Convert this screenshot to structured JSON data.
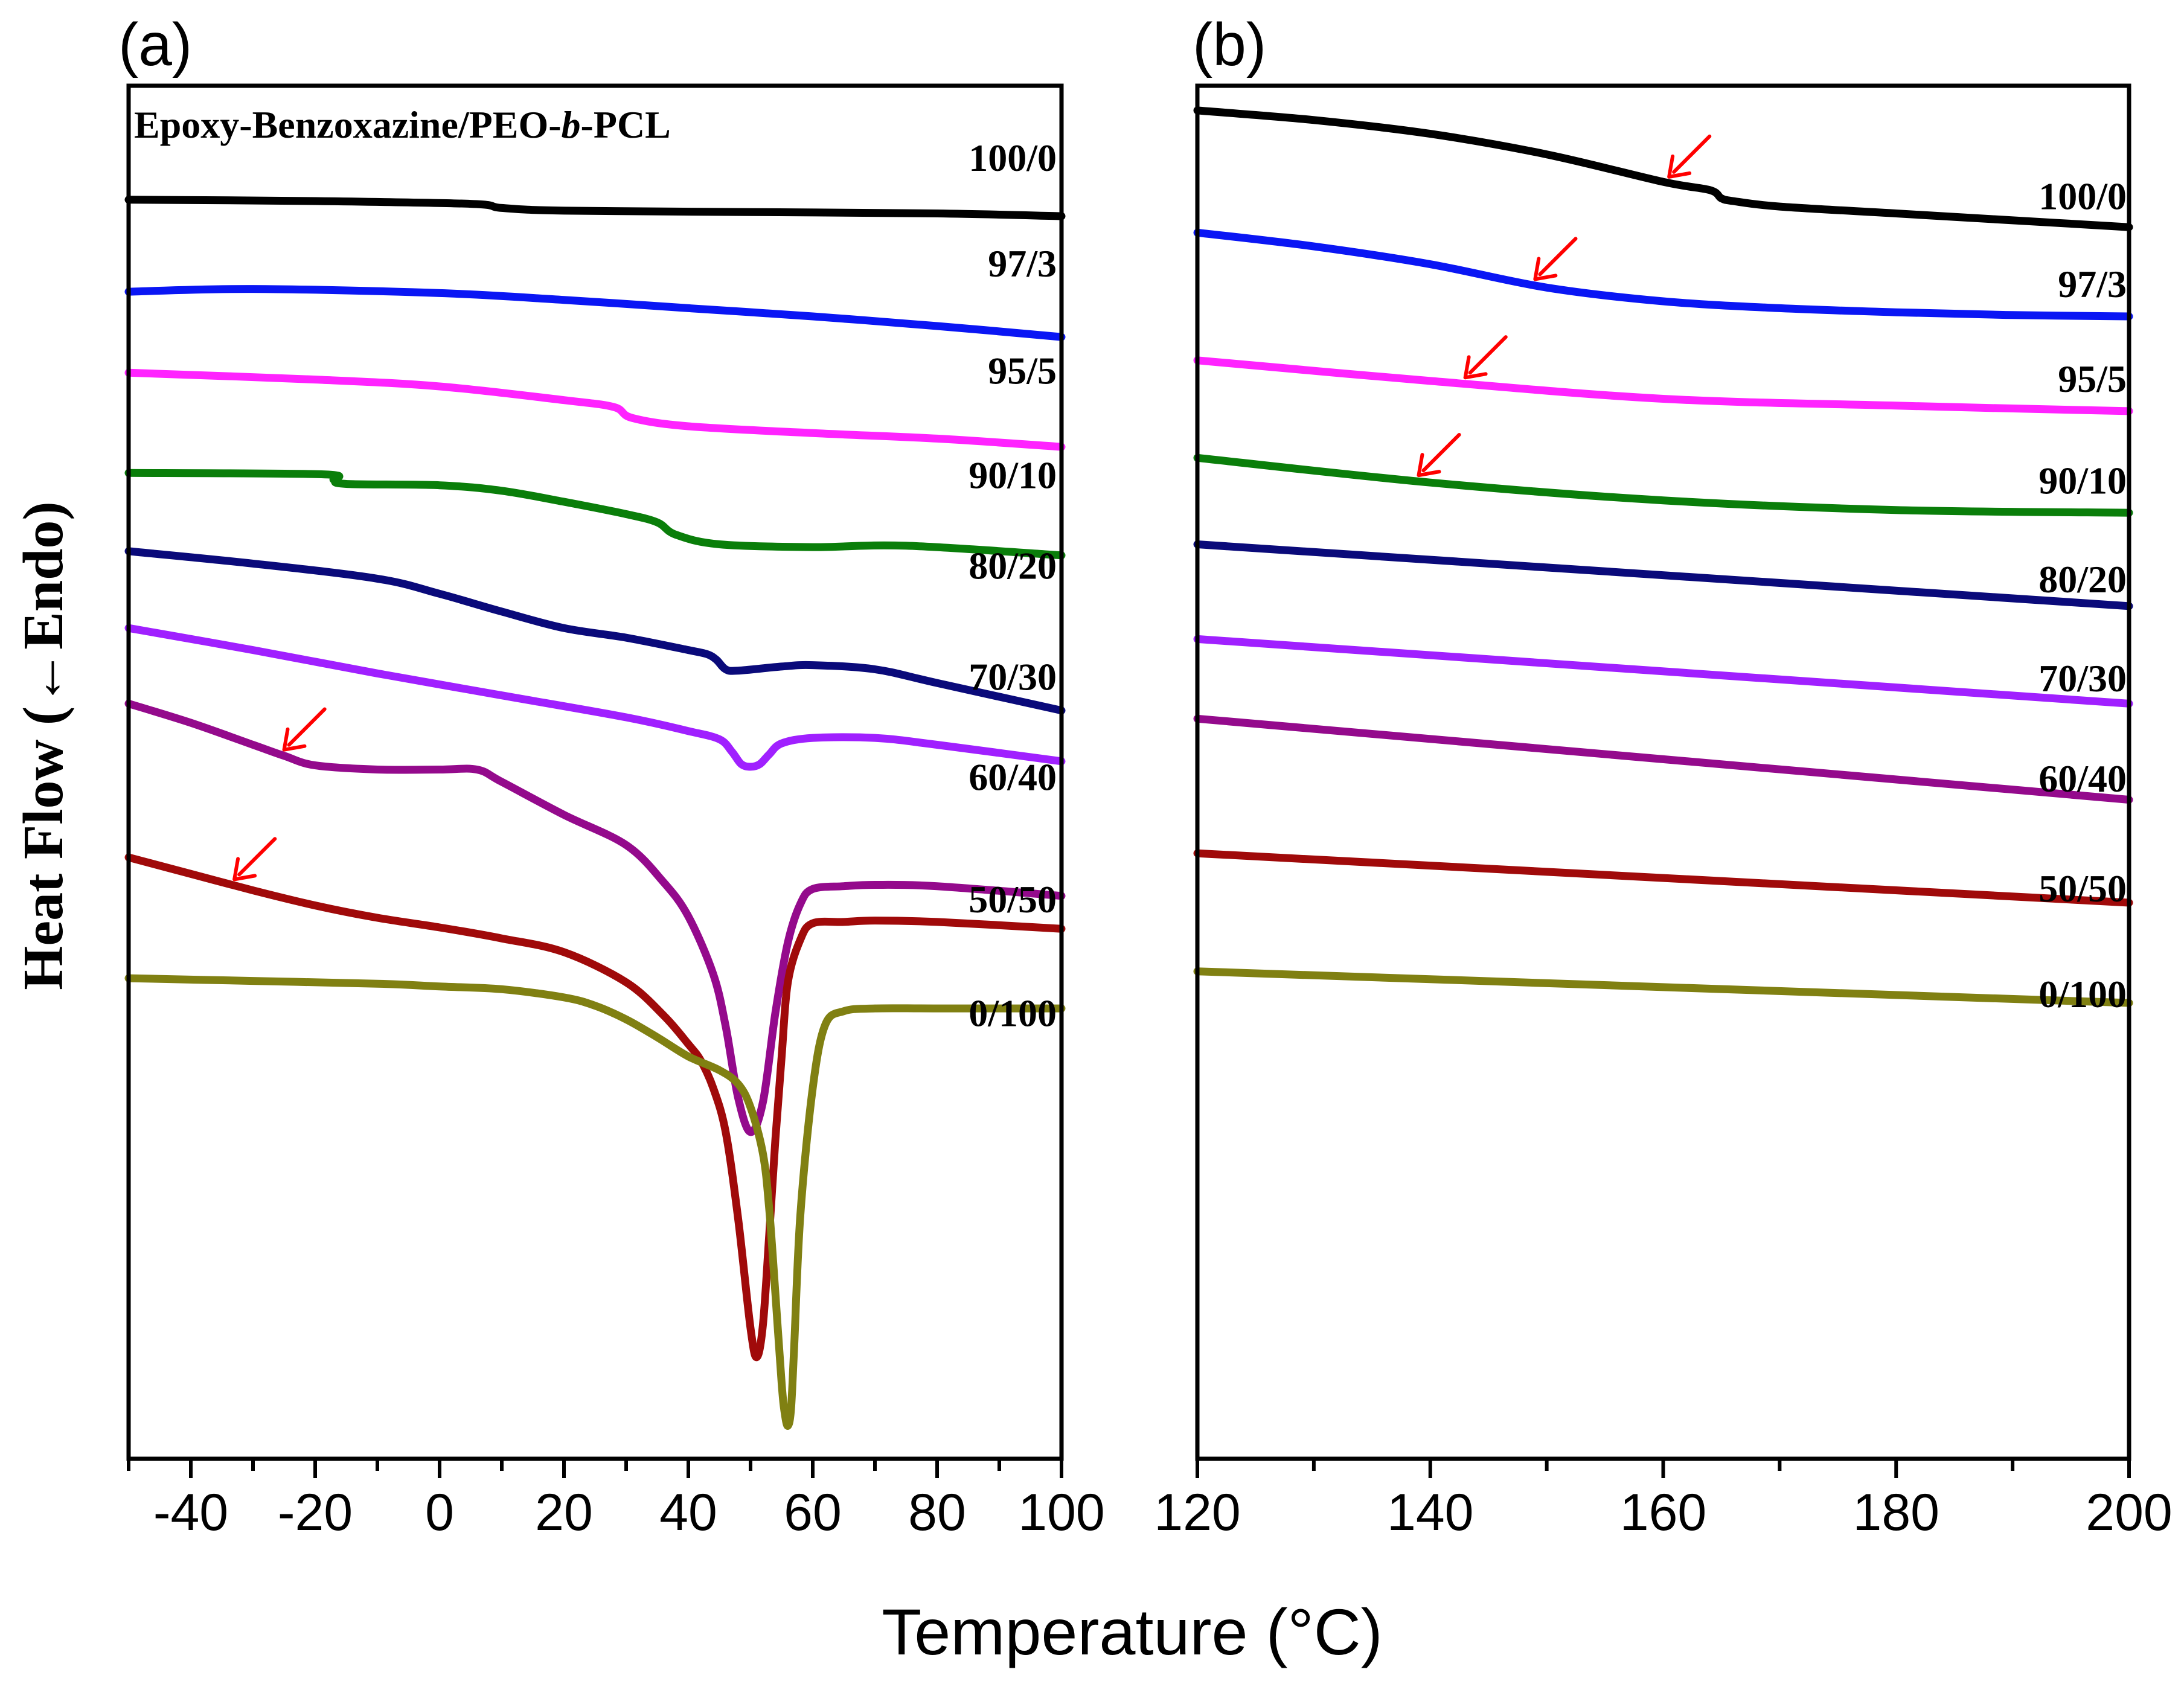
{
  "figure": {
    "ylabel": "Heat Flow (←Endo)",
    "xlabel": "Temperature (°C)",
    "colors": {
      "100/0": "#000000",
      "97/3": "#0a16f4",
      "95/5": "#ff23ff",
      "90/10": "#0a7e0a",
      "80/20": "#0a0a7a",
      "70/30": "#a020ff",
      "60/40": "#940a8c",
      "50/50": "#a00a0a",
      "0/100": "#808012",
      "arrow": "#ff0000"
    }
  },
  "chart_data": [
    {
      "panel": "(a)",
      "type": "line",
      "title": "Epoxy-Benzoxazine/PEO-b-PCL",
      "title_parts": [
        "Epoxy-Benzoxazine/PEO-",
        "b",
        "-PCL"
      ],
      "xlabel": "Temperature (°C)",
      "ylabel": "Heat Flow (←Endo)",
      "xlim": [
        -50,
        100
      ],
      "ylim": [
        0,
        1000
      ],
      "xticks": [
        -40,
        -20,
        0,
        20,
        40,
        60,
        80,
        100
      ],
      "xtick_labels": [
        "-40",
        "-20",
        "0",
        "20",
        "40",
        "60",
        "80",
        "100"
      ],
      "series": [
        {
          "name": "100/0",
          "x": [
            -50,
            -20,
            5,
            10,
            20,
            50,
            80,
            100
          ],
          "values": [
            917,
            916,
            914,
            911,
            909,
            908,
            907,
            905
          ]
        },
        {
          "name": "97/3",
          "x": [
            -50,
            -30,
            0,
            20,
            40,
            60,
            80,
            100
          ],
          "values": [
            850,
            852,
            849,
            844,
            838,
            832,
            825,
            817
          ]
        },
        {
          "name": "95/5",
          "x": [
            -50,
            -20,
            0,
            20,
            28,
            31,
            40,
            60,
            80,
            100
          ],
          "values": [
            791,
            786,
            781,
            771,
            766,
            758,
            752,
            747,
            743,
            737
          ]
        },
        {
          "name": "90/10",
          "x": [
            -50,
            -19,
            -17,
            -15,
            0,
            10,
            20,
            30,
            35,
            38,
            45,
            60,
            75,
            100
          ],
          "values": [
            718,
            717,
            713,
            710,
            709,
            705,
            697,
            688,
            682,
            673,
            666,
            664,
            665,
            658
          ]
        },
        {
          "name": "80/20",
          "x": [
            -50,
            -30,
            -10,
            0,
            10,
            20,
            30,
            40,
            43,
            44.5,
            46,
            48,
            55,
            60,
            70,
            80,
            100
          ],
          "values": [
            661,
            652,
            641,
            630,
            617,
            605,
            598,
            589,
            586,
            582,
            575,
            574,
            577,
            578,
            575,
            565,
            545
          ]
        },
        {
          "name": "70/30",
          "x": [
            -50,
            -30,
            -10,
            10,
            30,
            40,
            45,
            47,
            48.5,
            50,
            51.5,
            53,
            55,
            60,
            70,
            80,
            100
          ],
          "values": [
            605,
            589,
            572,
            556,
            540,
            530,
            524,
            515,
            506,
            504,
            506,
            513,
            521,
            525,
            525,
            520,
            508
          ]
        },
        {
          "name": "60/40",
          "x": [
            -50,
            -40,
            -30,
            -25,
            -20,
            -10,
            0,
            6,
            10,
            20,
            30,
            36,
            40,
            44,
            46,
            48,
            50,
            52,
            54,
            56,
            58,
            60,
            65,
            70,
            80,
            100
          ],
          "values": [
            550,
            536,
            520,
            512,
            505,
            502,
            502,
            502,
            493,
            469,
            447,
            420,
            395,
            353,
            315,
            263,
            238,
            260,
            325,
            376,
            404,
            415,
            417,
            418,
            417,
            410
          ]
        },
        {
          "name": "50/50",
          "x": [
            -50,
            -40,
            -30,
            -20,
            -10,
            0,
            10,
            20,
            30,
            36,
            40,
            42,
            44,
            46,
            48,
            50,
            51,
            52,
            53,
            54,
            55,
            56,
            58,
            60,
            65,
            70,
            80,
            100
          ],
          "values": [
            438,
            426,
            414,
            403,
            394,
            387,
            379,
            369,
            347,
            323,
            302,
            290,
            270,
            238,
            175,
            95,
            74,
            98,
            163,
            233,
            293,
            347,
            378,
            390,
            391,
            392,
            391,
            386
          ]
        },
        {
          "name": "0/100",
          "x": [
            -50,
            -30,
            -10,
            0,
            10,
            20,
            25,
            30,
            35,
            40,
            45,
            48,
            50,
            52,
            53,
            54,
            55,
            55.5,
            56,
            56.5,
            57,
            58,
            60,
            62,
            65,
            70,
            80,
            100
          ],
          "values": [
            350,
            348,
            346,
            344,
            342,
            336,
            330,
            320,
            307,
            293,
            283,
            273,
            256,
            222,
            182,
            120,
            55,
            33,
            24,
            36,
            80,
            177,
            270,
            316,
            326,
            328,
            328,
            328
          ]
        }
      ],
      "curve_labels": [
        {
          "text": "100/0",
          "y": 938
        },
        {
          "text": "97/3",
          "y": 861
        },
        {
          "text": "95/5",
          "y": 783
        },
        {
          "text": "90/10",
          "y": 707
        },
        {
          "text": "80/20",
          "y": 641
        },
        {
          "text": "70/30",
          "y": 560
        },
        {
          "text": "60/40",
          "y": 487
        },
        {
          "text": "50/50",
          "y": 398
        },
        {
          "text": "0/100",
          "y": 315
        }
      ],
      "arrows": [
        {
          "series": "60/40",
          "x": -25
        },
        {
          "series": "50/50",
          "x": -33
        }
      ]
    },
    {
      "panel": "(b)",
      "type": "line",
      "xlabel": "Temperature (°C)",
      "xlim": [
        120,
        200
      ],
      "ylim": [
        0,
        1000
      ],
      "xticks": [
        120,
        140,
        160,
        180,
        200
      ],
      "xtick_labels": [
        "120",
        "140",
        "160",
        "180",
        "200"
      ],
      "series": [
        {
          "name": "100/0",
          "x": [
            120,
            130,
            140,
            150,
            160,
            164,
            165,
            166,
            170,
            180,
            190,
            200
          ],
          "values": [
            982,
            975,
            965,
            950,
            930,
            924,
            918,
            916,
            912,
            907,
            902,
            897
          ]
        },
        {
          "name": "97/3",
          "x": [
            120,
            130,
            140,
            150,
            160,
            170,
            180,
            190,
            200
          ],
          "values": [
            893,
            883,
            870,
            853,
            843,
            838,
            835,
            833,
            832
          ]
        },
        {
          "name": "95/5",
          "x": [
            120,
            140,
            160,
            180,
            200
          ],
          "values": [
            800,
            785,
            772,
            767,
            763
          ]
        },
        {
          "name": "90/10",
          "x": [
            120,
            140,
            160,
            180,
            200
          ],
          "values": [
            729,
            711,
            698,
            691,
            689
          ]
        },
        {
          "name": "80/20",
          "x": [
            120,
            200
          ],
          "values": [
            666,
            621
          ]
        },
        {
          "name": "70/30",
          "x": [
            120,
            200
          ],
          "values": [
            597,
            550
          ]
        },
        {
          "name": "60/40",
          "x": [
            120,
            200
          ],
          "values": [
            539,
            480
          ]
        },
        {
          "name": "50/50",
          "x": [
            120,
            200
          ],
          "values": [
            441,
            405
          ]
        },
        {
          "name": "0/100",
          "x": [
            120,
            200
          ],
          "values": [
            355,
            332
          ]
        }
      ],
      "curve_labels": [
        {
          "text": "100/0",
          "y": 910
        },
        {
          "text": "97/3",
          "y": 846
        },
        {
          "text": "95/5",
          "y": 777
        },
        {
          "text": "90/10",
          "y": 703
        },
        {
          "text": "80/20",
          "y": 631
        },
        {
          "text": "70/30",
          "y": 559
        },
        {
          "text": "60/40",
          "y": 486
        },
        {
          "text": "50/50",
          "y": 406
        },
        {
          "text": "0/100",
          "y": 329
        }
      ],
      "arrows": [
        {
          "series": "100/0",
          "x": 160.5
        },
        {
          "series": "97/3",
          "x": 149
        },
        {
          "series": "95/5",
          "x": 143
        },
        {
          "series": "90/10",
          "x": 139
        }
      ]
    }
  ]
}
